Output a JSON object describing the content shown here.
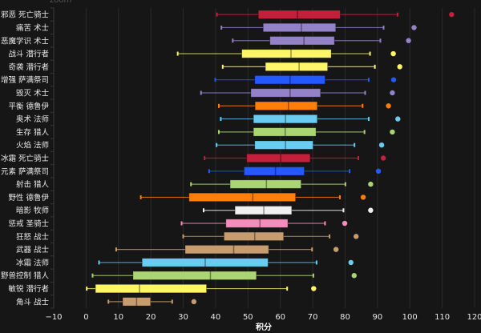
{
  "top_hint": "zoom",
  "chart_data": {
    "type": "boxplot",
    "orientation": "horizontal",
    "title": "",
    "xlabel": "积分",
    "ylabel": "",
    "xlim": [
      -10,
      120
    ],
    "xticks": [
      -10,
      0,
      10,
      20,
      30,
      40,
      50,
      60,
      70,
      80,
      90,
      100,
      110,
      120
    ],
    "grid": "vertical",
    "categories": [
      "邪恶 死亡骑士",
      "痛苦 术士",
      "恶魔学识 术士",
      "战斗 潜行者",
      "奇袭 潜行者",
      "增强 萨满祭司",
      "毁灭 术士",
      "平衡 德鲁伊",
      "奥术 法师",
      "生存 猎人",
      "火焰 法师",
      "冰霜 死亡骑士",
      "元素 萨满祭司",
      "射击 猎人",
      "野性 德鲁伊",
      "暗影 牧师",
      "惩戒 圣骑士",
      "狂怒 战士",
      "武器 战士",
      "冰霜 法师",
      "野兽控制 猎人",
      "敏锐 潜行者",
      "角斗 战士"
    ],
    "series": [
      {
        "name": "邪恶 死亡骑士",
        "min": 40.4,
        "q1": 53.2,
        "median": 65.3,
        "q3": 78.5,
        "max": 96.2,
        "outliers": [
          112.9
        ],
        "color": "#C41F3B"
      },
      {
        "name": "痛苦 术士",
        "min": 41.8,
        "q1": 54.7,
        "median": 66.5,
        "q3": 77.1,
        "max": 91.9,
        "outliers": [
          101.3
        ],
        "color": "#9482C9"
      },
      {
        "name": "恶魔学识 术士",
        "min": 45.3,
        "q1": 56.8,
        "median": 67.3,
        "q3": 76.7,
        "max": 90.9,
        "outliers": [
          99.6
        ],
        "color": "#9482C9"
      },
      {
        "name": "战斗 潜行者",
        "min": 28.3,
        "q1": 48.1,
        "median": 63.3,
        "q3": 75.7,
        "max": 87.7,
        "outliers": [
          94.9
        ],
        "color": "#FFF569"
      },
      {
        "name": "奇袭 潜行者",
        "min": 42.2,
        "q1": 55.4,
        "median": 65.8,
        "q3": 74.6,
        "max": 89.2,
        "outliers": [
          96.9
        ],
        "color": "#FFF569"
      },
      {
        "name": "增强 萨满祭司",
        "min": 39.9,
        "q1": 52.1,
        "median": 63.0,
        "q3": 73.8,
        "max": 87.3,
        "outliers": [
          95.0
        ],
        "color": "#2459FF"
      },
      {
        "name": "毁灭 术士",
        "min": 35.5,
        "q1": 50.9,
        "median": 63.0,
        "q3": 72.4,
        "max": 86.2,
        "outliers": [
          94.6
        ],
        "color": "#9482C9"
      },
      {
        "name": "平衡 德鲁伊",
        "min": 41.0,
        "q1": 52.2,
        "median": 62.5,
        "q3": 71.4,
        "max": 85.4,
        "outliers": [
          93.4
        ],
        "color": "#FF7D0A"
      },
      {
        "name": "奥术 法师",
        "min": 41.6,
        "q1": 51.7,
        "median": 61.6,
        "q3": 71.4,
        "max": 87.3,
        "outliers": [
          96.3
        ],
        "color": "#69CCF0"
      },
      {
        "name": "生存 猎人",
        "min": 41.0,
        "q1": 51.7,
        "median": 61.5,
        "q3": 71.0,
        "max": 86.0,
        "outliers": [
          94.6
        ],
        "color": "#ABD473"
      },
      {
        "name": "火焰 法师",
        "min": 40.3,
        "q1": 52.1,
        "median": 61.6,
        "q3": 70.1,
        "max": 82.9,
        "outliers": [
          91.3
        ],
        "color": "#69CCF0"
      },
      {
        "name": "冰霜 死亡骑士",
        "min": 36.6,
        "q1": 49.6,
        "median": 60.1,
        "q3": 69.2,
        "max": 84.1,
        "outliers": [
          91.8
        ],
        "color": "#C41F3B"
      },
      {
        "name": "元素 萨满祭司",
        "min": 38.0,
        "q1": 48.8,
        "median": 58.5,
        "q3": 67.4,
        "max": 81.4,
        "outliers": [
          90.3
        ],
        "color": "#2459FF"
      },
      {
        "name": "射击 猎人",
        "min": 32.4,
        "q1": 44.5,
        "median": 55.7,
        "q3": 66.4,
        "max": 80.1,
        "outliers": [
          87.9
        ],
        "color": "#ABD473"
      },
      {
        "name": "野性 德鲁伊",
        "min": 16.9,
        "q1": 31.8,
        "median": 51.5,
        "q3": 64.7,
        "max": 78.4,
        "outliers": [
          85.6
        ],
        "color": "#FF7D0A"
      },
      {
        "name": "暗影 牧师",
        "min": 36.3,
        "q1": 46.0,
        "median": 54.9,
        "q3": 63.5,
        "max": 79.5,
        "outliers": [
          87.9
        ],
        "color": "#F0F0F0"
      },
      {
        "name": "惩戒 圣骑士",
        "min": 29.5,
        "q1": 43.2,
        "median": 53.7,
        "q3": 62.3,
        "max": 73.8,
        "outliers": [
          79.9
        ],
        "color": "#F58CBA"
      },
      {
        "name": "狂怒 战士",
        "min": 30.0,
        "q1": 42.6,
        "median": 52.1,
        "q3": 61.0,
        "max": 75.2,
        "outliers": [
          83.4
        ],
        "color": "#C79C6E"
      },
      {
        "name": "武器 战士",
        "min": 9.3,
        "q1": 30.6,
        "median": 45.6,
        "q3": 56.4,
        "max": 69.8,
        "outliers": [
          77.2
        ],
        "color": "#C79C6E"
      },
      {
        "name": "冰霜 法师",
        "min": 4.0,
        "q1": 17.3,
        "median": 36.8,
        "q3": 56.2,
        "max": 71.2,
        "outliers": [
          81.8
        ],
        "color": "#69CCF0"
      },
      {
        "name": "野兽控制 猎人",
        "min": 2.0,
        "q1": 14.5,
        "median": 38.4,
        "q3": 52.6,
        "max": 70.2,
        "outliers": [
          82.8
        ],
        "color": "#ABD473"
      },
      {
        "name": "敏锐 潜行者",
        "min": 0.2,
        "q1": 2.9,
        "median": 16.5,
        "q3": 37.2,
        "max": 62.1,
        "outliers": [
          70.3
        ],
        "color": "#FFF569"
      },
      {
        "name": "角斗 战士",
        "min": 6.9,
        "q1": 11.3,
        "median": 15.6,
        "q3": 19.9,
        "max": 26.6,
        "outliers": [
          33.3
        ],
        "color": "#C79C6E"
      }
    ]
  }
}
